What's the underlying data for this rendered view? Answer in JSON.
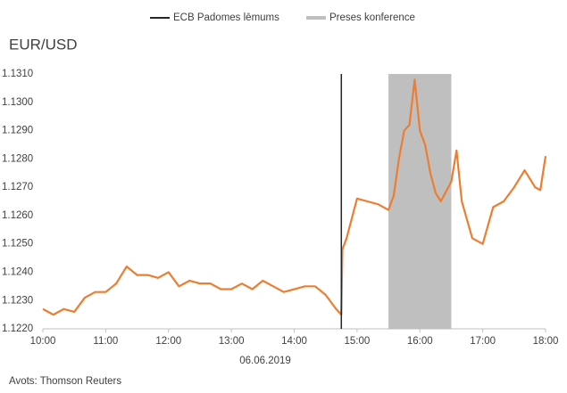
{
  "chart_data": {
    "type": "line",
    "title": "EUR/USD",
    "x_label": "06.06.2019",
    "source": "Avots: Thomson Reuters",
    "color": "#ed7d31",
    "x": [
      600,
      610,
      620,
      630,
      640,
      650,
      660,
      670,
      680,
      690,
      700,
      710,
      720,
      730,
      740,
      750,
      760,
      770,
      780,
      790,
      800,
      810,
      820,
      830,
      840,
      850,
      860,
      870,
      880,
      885,
      886,
      890,
      900,
      910,
      920,
      930,
      935,
      940,
      945,
      950,
      955,
      960,
      965,
      970,
      975,
      980,
      990,
      995,
      1000,
      1010,
      1020,
      1030,
      1040,
      1050,
      1060,
      1070,
      1075,
      1080
    ],
    "values": [
      1.1227,
      1.1225,
      1.1227,
      1.1226,
      1.1231,
      1.1233,
      1.1233,
      1.1236,
      1.1242,
      1.1239,
      1.1239,
      1.1238,
      1.124,
      1.1235,
      1.1237,
      1.1236,
      1.1236,
      1.1234,
      1.1234,
      1.1236,
      1.1234,
      1.1237,
      1.1235,
      1.1233,
      1.1234,
      1.1235,
      1.1235,
      1.1232,
      1.1227,
      1.1225,
      1.1248,
      1.1252,
      1.1266,
      1.1265,
      1.1264,
      1.1262,
      1.1267,
      1.128,
      1.129,
      1.1292,
      1.1308,
      1.129,
      1.1285,
      1.1275,
      1.1268,
      1.1265,
      1.1272,
      1.1283,
      1.1265,
      1.1252,
      1.125,
      1.1263,
      1.1265,
      1.127,
      1.1276,
      1.127,
      1.1269,
      1.1281
    ],
    "marker": {
      "name": "ECB Padomes lēmums",
      "color": "#262626",
      "x": 885
    },
    "band": {
      "name": "Preses konference",
      "color": "#bfbfbf",
      "x": [
        930,
        990
      ]
    },
    "xlim": [
      600,
      1080
    ],
    "xticks": [
      {
        "value": 600,
        "label": "10:00"
      },
      {
        "value": 660,
        "label": "11:00"
      },
      {
        "value": 720,
        "label": "12:00"
      },
      {
        "value": 780,
        "label": "13:00"
      },
      {
        "value": 840,
        "label": "14:00"
      },
      {
        "value": 900,
        "label": "15:00"
      },
      {
        "value": 960,
        "label": "16:00"
      },
      {
        "value": 1020,
        "label": "17:00"
      },
      {
        "value": 1080,
        "label": "18:00"
      }
    ],
    "ylim": [
      1.122,
      1.131
    ],
    "yticks": [
      {
        "value": 1.122,
        "label": "1.1220"
      },
      {
        "value": 1.123,
        "label": "1.1230"
      },
      {
        "value": 1.124,
        "label": "1.1240"
      },
      {
        "value": 1.125,
        "label": "1.1250"
      },
      {
        "value": 1.126,
        "label": "1.1260"
      },
      {
        "value": 1.127,
        "label": "1.1270"
      },
      {
        "value": 1.128,
        "label": "1.1280"
      },
      {
        "value": 1.129,
        "label": "1.1290"
      },
      {
        "value": 1.13,
        "label": "1.1300"
      },
      {
        "value": 1.131,
        "label": "1.1310"
      }
    ]
  }
}
